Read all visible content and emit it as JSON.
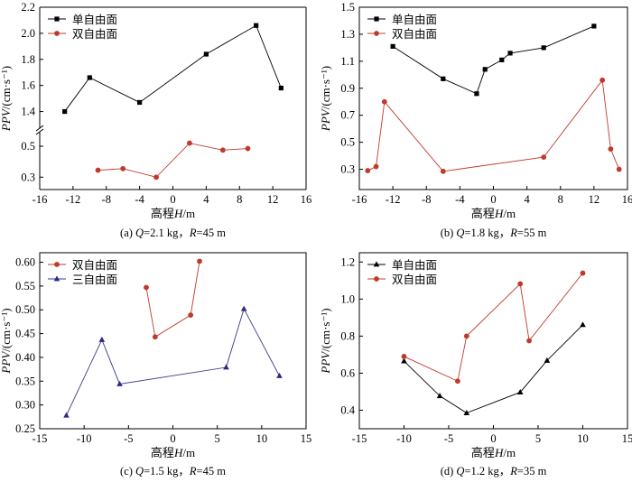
{
  "colors": {
    "单自由面": "#000000",
    "双自由面": "#c0392b",
    "三自由面": "#2e2a82",
    "line_三自由面": "#3a3a8c"
  },
  "chart_data": [
    {
      "type": "line",
      "caption": "(a) Q=2.1 kg，R=45 m",
      "xlabel": "高程H/m",
      "ylabel": "PPV/(cm·s⁻¹)",
      "xlim": [
        -16,
        16
      ],
      "x_ticks": [
        -16,
        -12,
        -8,
        -4,
        0,
        4,
        8,
        12,
        16
      ],
      "y_axis": "broken",
      "y_ticks_upper": [
        1.4,
        1.6,
        1.8,
        2.0,
        2.2
      ],
      "y_ticks_lower": [
        0.3,
        0.5
      ],
      "legend_position": "top-left",
      "series": [
        {
          "name": "单自由面",
          "marker": "square",
          "x": [
            -13,
            -10,
            -4,
            4,
            10,
            13
          ],
          "y": [
            1.4,
            1.66,
            1.47,
            1.84,
            2.06,
            1.58
          ]
        },
        {
          "name": "双自由面",
          "marker": "circle",
          "x": [
            -9,
            -6,
            -2,
            2,
            6,
            9
          ],
          "y": [
            0.345,
            0.355,
            0.3,
            0.52,
            0.475,
            0.485
          ]
        }
      ]
    },
    {
      "type": "line",
      "caption": "(b) Q=1.8 kg，R=55 m",
      "xlabel": "高程H/m",
      "ylabel": "PPV/(cm·s⁻¹)",
      "xlim": [
        -16,
        16
      ],
      "ylim": [
        0.15,
        1.5
      ],
      "x_ticks": [
        -16,
        -12,
        -8,
        -4,
        0,
        4,
        8,
        12,
        16
      ],
      "y_ticks": [
        0.3,
        0.5,
        0.7,
        0.9,
        1.1,
        1.3,
        1.5
      ],
      "legend_position": "top-left",
      "series": [
        {
          "name": "单自由面",
          "marker": "square",
          "x": [
            -12,
            -6,
            -2,
            -1,
            1,
            2,
            6,
            12
          ],
          "y": [
            1.21,
            0.97,
            0.86,
            1.04,
            1.11,
            1.16,
            1.2,
            1.36
          ]
        },
        {
          "name": "双自由面",
          "marker": "circle",
          "x": [
            -15,
            -14,
            -13,
            -6,
            6,
            13,
            14,
            15
          ],
          "y": [
            0.29,
            0.32,
            0.8,
            0.285,
            0.39,
            0.96,
            0.45,
            0.3
          ]
        }
      ]
    },
    {
      "type": "line",
      "caption": "(c) Q=1.5 kg，R=45 m",
      "xlabel": "高程H/m",
      "ylabel": "PPV/(cm·s⁻¹)",
      "xlim": [
        -15,
        15
      ],
      "ylim": [
        0.25,
        0.62
      ],
      "x_ticks": [
        -15,
        -10,
        -5,
        0,
        5,
        10,
        15
      ],
      "y_ticks": [
        0.25,
        0.3,
        0.35,
        0.4,
        0.45,
        0.5,
        0.55,
        0.6
      ],
      "y_tick_labels": [
        "0.25",
        "0.30",
        "0.35",
        "0.40",
        "0.45",
        "0.50",
        "0.55",
        "0.60"
      ],
      "legend_position": "top-left",
      "series": [
        {
          "name": "双自由面",
          "marker": "circle",
          "x": [
            -3,
            -2,
            2,
            3
          ],
          "y": [
            0.547,
            0.443,
            0.489,
            0.602
          ]
        },
        {
          "name": "三自由面",
          "marker": "triangle",
          "x": [
            -12,
            -8,
            -6,
            6,
            8,
            12
          ],
          "y": [
            0.278,
            0.437,
            0.344,
            0.379,
            0.502,
            0.361
          ]
        }
      ]
    },
    {
      "type": "line",
      "caption": "(d) Q=1.2 kg，R=35 m",
      "xlabel": "高程H/m",
      "ylabel": "PPV/(cm·s⁻¹)",
      "xlim": [
        -15,
        15
      ],
      "ylim": [
        0.3,
        1.25
      ],
      "x_ticks": [
        -15,
        -10,
        -5,
        0,
        5,
        10,
        15
      ],
      "y_ticks": [
        0.4,
        0.6,
        0.8,
        1.0,
        1.2
      ],
      "legend_position": "top-left",
      "series": [
        {
          "name": "单自由面",
          "marker": "triangle",
          "x": [
            -10,
            -6,
            -3,
            3,
            6,
            10
          ],
          "y": [
            0.665,
            0.477,
            0.385,
            0.497,
            0.668,
            0.861
          ]
        },
        {
          "name": "双自由面",
          "marker": "circle",
          "x": [
            -10,
            -4,
            -3,
            3,
            4,
            10
          ],
          "y": [
            0.69,
            0.557,
            0.8,
            1.082,
            0.775,
            1.14
          ]
        }
      ]
    }
  ]
}
